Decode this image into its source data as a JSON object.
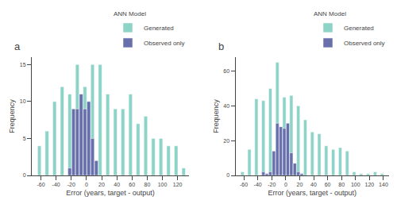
{
  "chart_data": [
    {
      "type": "bar",
      "title": "a",
      "xlabel": "Error (years, target - output)",
      "ylabel": "Frequency",
      "series": [
        {
          "name": "Generated",
          "color": "#8dd3c7",
          "x": [
            -62,
            -57,
            -52,
            -47,
            -42,
            -37,
            -32,
            -27,
            -22,
            -17,
            -12,
            -7,
            -2,
            3,
            8,
            13,
            18,
            23,
            28,
            33,
            38,
            43,
            48,
            53,
            58,
            63,
            68,
            73,
            78,
            83,
            88,
            93,
            98,
            103,
            108,
            113,
            118,
            123,
            128
          ],
          "values": [
            4,
            0,
            6,
            0,
            10,
            0,
            12,
            0,
            11,
            0,
            15,
            0,
            12,
            0,
            15,
            0,
            15,
            0,
            11,
            0,
            9,
            0,
            9,
            0,
            11,
            0,
            7,
            0,
            8,
            0,
            5,
            0,
            5,
            0,
            4,
            0,
            4,
            0,
            1
          ]
        },
        {
          "name": "Observed only",
          "color": "#6870ab",
          "x": [
            -22,
            -17,
            -12,
            -7,
            -2,
            3,
            8,
            13
          ],
          "values": [
            1,
            9,
            9,
            11,
            9,
            10,
            5,
            2
          ]
        }
      ],
      "xlim": [
        -72,
        135
      ],
      "ylim": [
        0,
        16
      ],
      "xticks": [
        -60,
        -40,
        -20,
        0,
        20,
        40,
        60,
        80,
        100,
        120
      ],
      "yticks": [
        0,
        5,
        10,
        15
      ],
      "grid": false,
      "legend": "upper right",
      "legend_title": "ANN Model"
    },
    {
      "type": "bar",
      "title": "b",
      "xlabel": "Error (years, target - output)",
      "ylabel": "Frequency",
      "series": [
        {
          "name": "Generated",
          "color": "#8dd3c7",
          "x": [
            -62,
            -57,
            -52,
            -47,
            -42,
            -37,
            -32,
            -27,
            -22,
            -17,
            -12,
            -7,
            -2,
            3,
            8,
            13,
            18,
            23,
            28,
            33,
            38,
            43,
            48,
            53,
            58,
            63,
            68,
            73,
            78,
            83,
            88,
            93,
            98,
            103,
            108,
            113,
            118,
            123,
            128,
            133,
            138
          ],
          "values": [
            2,
            0,
            15,
            0,
            44,
            0,
            43,
            0,
            50,
            0,
            65,
            0,
            45,
            0,
            46,
            0,
            40,
            0,
            32,
            0,
            25,
            0,
            24,
            0,
            17,
            0,
            15,
            0,
            16,
            0,
            14,
            0,
            2,
            0,
            1,
            0,
            1,
            0,
            2,
            0,
            1
          ]
        },
        {
          "name": "Observed only",
          "color": "#6870ab",
          "x": [
            -32,
            -27,
            -22,
            -17,
            -12,
            -7,
            -2,
            3,
            8,
            13,
            18,
            23
          ],
          "values": [
            2,
            1,
            2,
            14,
            30,
            28,
            27,
            30,
            13,
            7,
            2,
            1
          ]
        }
      ],
      "xlim": [
        -72,
        148
      ],
      "ylim": [
        0,
        68
      ],
      "xticks": [
        -60,
        -40,
        -20,
        0,
        20,
        40,
        60,
        80,
        100,
        120,
        140
      ],
      "yticks": [
        0,
        20,
        40,
        60
      ],
      "grid": false,
      "legend": "upper right",
      "legend_title": "ANN Model"
    }
  ]
}
